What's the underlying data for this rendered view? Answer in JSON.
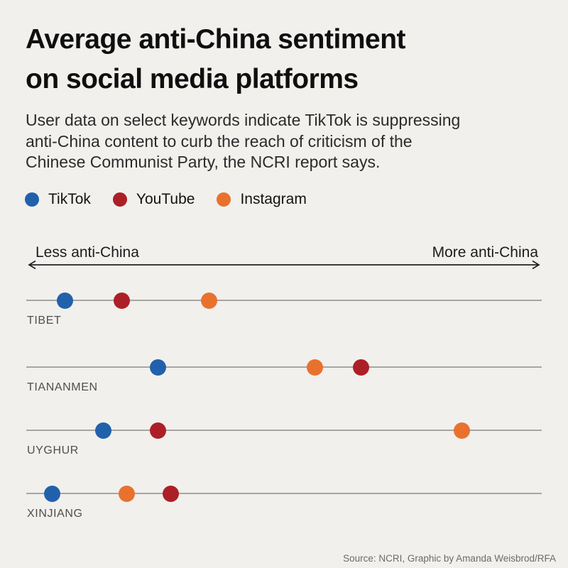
{
  "header": {
    "title": "Average anti-China sentiment\non social media platforms",
    "subtitle": "User data on select keywords indicate TikTok is suppressing\nanti-China content to curb the reach of criticism of the\nChinese Communist Party, the NCRI report says."
  },
  "colors": {
    "background": "#f1f0ed",
    "row_line": "#a8a6a2",
    "row_label": "#4f4f4f",
    "axis_arrow": "#222222",
    "source_text": "#6e6b68"
  },
  "chart_data": {
    "type": "scatter",
    "variant": "horizontal-dot-plot",
    "title": "Average anti-China sentiment on social media platforms",
    "x_axis": {
      "left_label": "Less anti-China",
      "right_label": "More anti-China",
      "range": [
        0,
        100
      ],
      "numeric_ticks": false
    },
    "categories": [
      "TIBET",
      "TIANANMEN",
      "UYGHUR",
      "XINJIANG"
    ],
    "series": [
      {
        "name": "TikTok",
        "color": "#2161ac",
        "values": [
          7.5,
          25.5,
          15.0,
          5.0
        ]
      },
      {
        "name": "YouTube",
        "color": "#ad1f26",
        "values": [
          18.5,
          65.0,
          25.5,
          28.0
        ]
      },
      {
        "name": "Instagram",
        "color": "#e9712e",
        "values": [
          35.5,
          56.0,
          84.5,
          19.5
        ]
      }
    ],
    "legend_position": "top",
    "grid": false
  },
  "footer": {
    "source": "Source: NCRI, Graphic by Amanda Weisbrod/RFA"
  }
}
